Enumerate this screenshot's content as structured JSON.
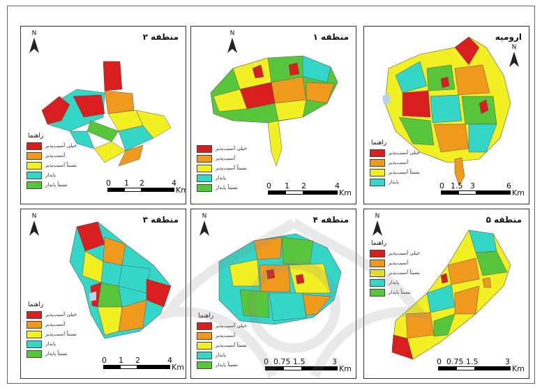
{
  "colors": {
    "very_high": "#d81e1e",
    "high": "#ef9a1c",
    "medium": "#f2ef22",
    "low": "#33d6c7",
    "very_low": "#58c63a",
    "wash": "#b9d3ea"
  },
  "legend": {
    "title": "راهنما",
    "items": [
      "خیلی آسیب‌پذیر",
      "آسیب‌پذیر",
      "نسبتاً آسیب‌پذیر",
      "پایدار",
      "نسبتاً پایدار"
    ]
  },
  "north_label": "N",
  "panels": [
    {
      "id": "region2",
      "title": "منطقه ۲",
      "scale": {
        "ticks": [
          "0",
          "1",
          "2",
          "4"
        ],
        "unit": "Km"
      }
    },
    {
      "id": "region1",
      "title": "منطقه ۱",
      "scale": {
        "ticks": [
          "0",
          "1",
          "2",
          "4"
        ],
        "unit": "Km"
      }
    },
    {
      "id": "urmia",
      "title": "ارومیه",
      "scale": {
        "ticks": [
          "0",
          "1.5",
          "3",
          "6"
        ],
        "unit": "Km"
      }
    },
    {
      "id": "region3",
      "title": "منطقه ۳",
      "scale": {
        "ticks": [
          "0",
          "1",
          "2",
          "4"
        ],
        "unit": "Km"
      }
    },
    {
      "id": "region4",
      "title": "منطقه ۴",
      "scale": {
        "ticks": [
          "0",
          "0.75",
          "1.5",
          "3"
        ],
        "unit": "Km"
      }
    },
    {
      "id": "region5",
      "title": "منطقه ۵",
      "scale": {
        "ticks": [
          "0",
          "0.75",
          "1.5",
          "3"
        ],
        "unit": "Km"
      }
    }
  ]
}
